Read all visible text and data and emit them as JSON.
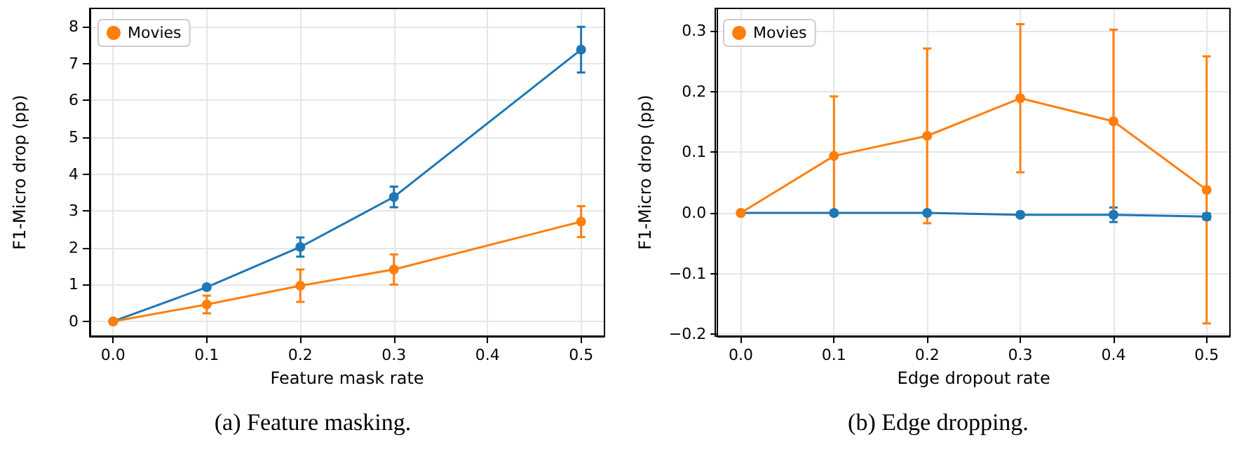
{
  "chart_data": [
    {
      "type": "line",
      "title": "(a) Feature masking.",
      "xlabel": "Feature mask rate",
      "ylabel": "F1-Micro drop (pp)",
      "xlim": [
        -0.025,
        0.525
      ],
      "ylim": [
        -0.4,
        8.5
      ],
      "xticks": [
        {
          "value": 0,
          "label": "0.0"
        },
        {
          "value": 0.1,
          "label": "0.1"
        },
        {
          "value": 0.2,
          "label": "0.2"
        },
        {
          "value": 0.3,
          "label": "0.3"
        },
        {
          "value": 0.4,
          "label": "0.4"
        },
        {
          "value": 0.5,
          "label": "0.5"
        }
      ],
      "yticks": [
        0,
        1,
        2,
        3,
        4,
        5,
        6,
        7,
        8
      ],
      "series": [
        {
          "color": "#1f77b4",
          "x": [
            0,
            0.1,
            0.2,
            0.3,
            0.5
          ],
          "values": [
            0,
            0.93,
            2.02,
            3.38,
            7.38
          ],
          "errors": [
            null,
            0.05,
            0.26,
            0.28,
            0.62
          ]
        },
        {
          "name": "Movies",
          "color": "#ff7f0e",
          "x": [
            0,
            0.1,
            0.2,
            0.3,
            0.5
          ],
          "values": [
            0,
            0.46,
            0.97,
            1.41,
            2.71
          ],
          "errors": [
            null,
            0.24,
            0.44,
            0.41,
            0.42
          ]
        }
      ],
      "grid": true,
      "legend": "top left",
      "marker": "circle"
    },
    {
      "type": "line",
      "title": "(b) Edge dropping.",
      "xlabel": "Edge dropout rate",
      "ylabel": "F1-Micro drop (pp)",
      "xlim": [
        -0.025,
        0.525
      ],
      "ylim": [
        -0.203,
        0.337
      ],
      "xticks": [
        {
          "value": 0,
          "label": "0.0"
        },
        {
          "value": 0.1,
          "label": "0.1"
        },
        {
          "value": 0.2,
          "label": "0.2"
        },
        {
          "value": 0.3,
          "label": "0.3"
        },
        {
          "value": 0.4,
          "label": "0.4"
        },
        {
          "value": 0.5,
          "label": "0.5"
        }
      ],
      "yticks": [
        {
          "value": -0.2,
          "label": "−0.2"
        },
        {
          "value": -0.1,
          "label": "−0.1"
        },
        {
          "value": 0,
          "label": "0.0"
        },
        {
          "value": 0.1,
          "label": "0.1"
        },
        {
          "value": 0.2,
          "label": "0.2"
        },
        {
          "value": 0.3,
          "label": "0.3"
        }
      ],
      "series": [
        {
          "color": "#1f77b4",
          "x": [
            0,
            0.1,
            0.2,
            0.3,
            0.4,
            0.5
          ],
          "values": [
            0,
            0,
            0,
            -0.003,
            -0.003,
            -0.006
          ],
          "errors": [
            null,
            null,
            null,
            0.003,
            0.012,
            0.005
          ]
        },
        {
          "name": "Movies",
          "color": "#ff7f0e",
          "x": [
            0,
            0.1,
            0.2,
            0.3,
            0.4,
            0.5
          ],
          "values": [
            0,
            0.094,
            0.127,
            0.189,
            0.151,
            0.038
          ],
          "errors": [
            null,
            0.098,
            0.144,
            0.122,
            0.151,
            0.22
          ]
        }
      ],
      "grid": true,
      "legend": "top left",
      "marker": "circle"
    }
  ]
}
